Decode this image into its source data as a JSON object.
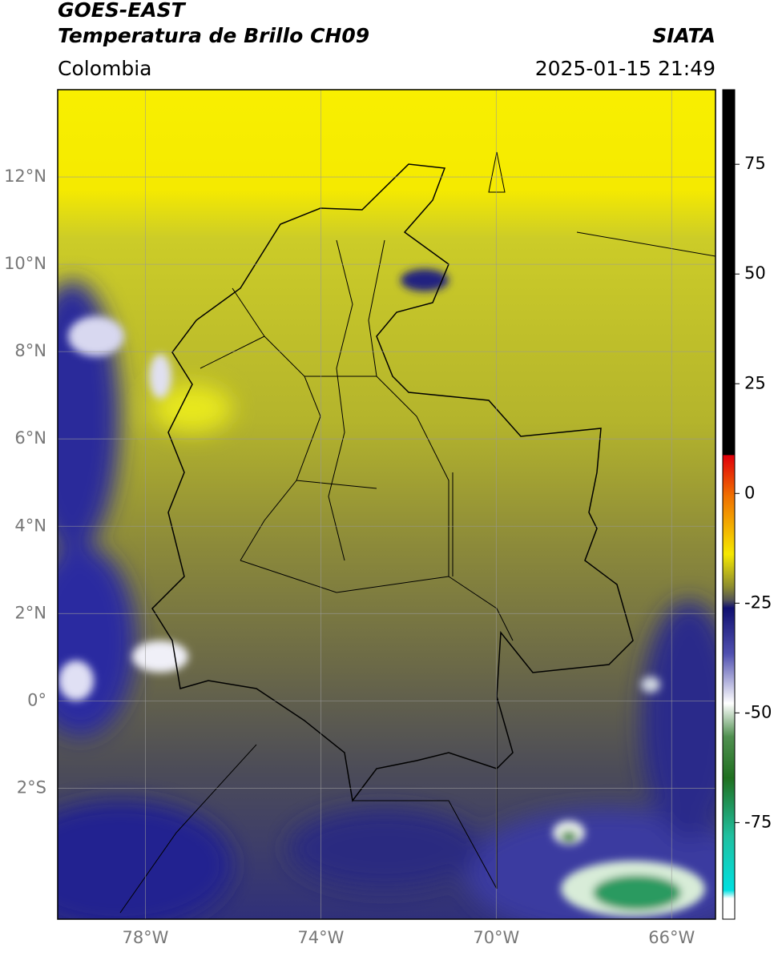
{
  "header": {
    "title": "GOES-EAST",
    "subtitle": "Temperatura de Brillo CH09",
    "region": "Colombia",
    "source": "SIATA",
    "datetime": "2025-01-15 21:49"
  },
  "map": {
    "xlim": [
      -80,
      -65
    ],
    "ylim": [
      -5,
      14
    ],
    "xticks": [
      {
        "value": -78,
        "label": "78°W"
      },
      {
        "value": -74,
        "label": "74°W"
      },
      {
        "value": -70,
        "label": "70°W"
      },
      {
        "value": -66,
        "label": "66°W"
      }
    ],
    "yticks": [
      {
        "value": 12,
        "label": "12°N"
      },
      {
        "value": 10,
        "label": "10°N"
      },
      {
        "value": 8,
        "label": "8°N"
      },
      {
        "value": 6,
        "label": "6°N"
      },
      {
        "value": 4,
        "label": "4°N"
      },
      {
        "value": 2,
        "label": "2°N"
      },
      {
        "value": 0,
        "label": "0°"
      },
      {
        "value": -2,
        "label": "2°S"
      }
    ],
    "grid": true
  },
  "colorbar": {
    "lim": [
      -97,
      92
    ],
    "ticks": [
      75,
      50,
      25,
      0,
      -25,
      -50,
      -75
    ]
  }
}
